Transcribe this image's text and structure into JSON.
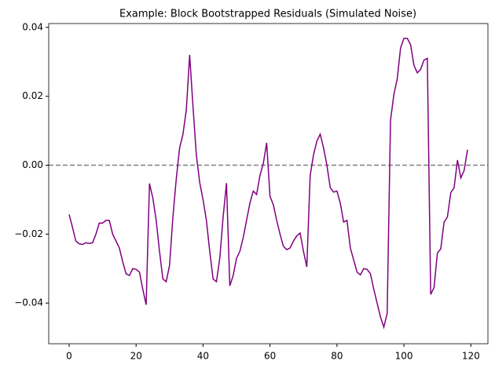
{
  "chart_data": {
    "type": "line",
    "title": "Example: Block Bootstrapped Residuals (Simulated Noise)",
    "x": [
      0,
      1,
      2,
      3,
      4,
      5,
      6,
      7,
      8,
      9,
      10,
      11,
      12,
      13,
      14,
      15,
      16,
      17,
      18,
      19,
      20,
      21,
      22,
      23,
      24,
      25,
      26,
      27,
      28,
      29,
      30,
      31,
      32,
      33,
      34,
      35,
      36,
      37,
      38,
      39,
      40,
      41,
      42,
      43,
      44,
      45,
      46,
      47,
      48,
      49,
      50,
      51,
      52,
      53,
      54,
      55,
      56,
      57,
      58,
      59,
      60,
      61,
      62,
      63,
      64,
      65,
      66,
      67,
      68,
      69,
      70,
      71,
      72,
      73,
      74,
      75,
      76,
      77,
      78,
      79,
      80,
      81,
      82,
      83,
      84,
      85,
      86,
      87,
      88,
      89,
      90,
      91,
      92,
      93,
      94,
      95,
      96,
      97,
      98,
      99,
      100,
      101,
      102,
      103,
      104,
      105,
      106,
      107,
      108,
      109,
      110,
      111,
      112,
      113,
      114,
      115,
      116,
      117,
      118,
      119
    ],
    "series": [
      {
        "color": "#800080",
        "values": [
          -0.0143,
          -0.018,
          -0.022,
          -0.0228,
          -0.023,
          -0.0225,
          -0.0227,
          -0.0225,
          -0.02,
          -0.0168,
          -0.0168,
          -0.016,
          -0.016,
          -0.02,
          -0.022,
          -0.024,
          -0.028,
          -0.0315,
          -0.032,
          -0.03,
          -0.0302,
          -0.031,
          -0.036,
          -0.0405,
          -0.0053,
          -0.0095,
          -0.016,
          -0.025,
          -0.033,
          -0.0338,
          -0.029,
          -0.015,
          -0.004,
          0.005,
          0.009,
          0.016,
          0.032,
          0.017,
          0.003,
          -0.005,
          -0.01,
          -0.016,
          -0.025,
          -0.033,
          -0.0338,
          -0.027,
          -0.015,
          -0.0052,
          -0.035,
          -0.032,
          -0.027,
          -0.025,
          -0.021,
          -0.016,
          -0.011,
          -0.0075,
          -0.0085,
          -0.003,
          0.0005,
          0.0065,
          -0.009,
          -0.0115,
          -0.016,
          -0.02,
          -0.0235,
          -0.0245,
          -0.024,
          -0.022,
          -0.0205,
          -0.0197,
          -0.025,
          -0.0295,
          -0.003,
          0.003,
          0.007,
          0.009,
          0.005,
          0.0,
          -0.0065,
          -0.0078,
          -0.0075,
          -0.011,
          -0.0165,
          -0.016,
          -0.024,
          -0.0275,
          -0.031,
          -0.0318,
          -0.03,
          -0.0302,
          -0.0315,
          -0.036,
          -0.04,
          -0.044,
          -0.047,
          -0.043,
          0.013,
          0.0205,
          0.025,
          0.034,
          0.0368,
          0.0368,
          0.035,
          0.029,
          0.0268,
          0.0278,
          0.0305,
          0.031,
          -0.0375,
          -0.0355,
          -0.0255,
          -0.0243,
          -0.0165,
          -0.015,
          -0.008,
          -0.0065,
          0.0015,
          -0.0037,
          -0.0015,
          0.0045
        ]
      }
    ],
    "hline": {
      "value": 0,
      "color": "#808080"
    },
    "xlim": [
      -6.1,
      125.1
    ],
    "xticks": [
      0,
      20,
      40,
      60,
      80,
      100,
      120
    ],
    "ylim": [
      -0.0518,
      0.0411
    ],
    "yticks": [
      {
        "value": -0.04,
        "label": "−0.04"
      },
      {
        "value": -0.02,
        "label": "−0.02"
      },
      {
        "value": 0,
        "label": "0.00"
      },
      {
        "value": 0.02,
        "label": "0.02"
      },
      {
        "value": 0.04,
        "label": "0.04"
      }
    ]
  }
}
